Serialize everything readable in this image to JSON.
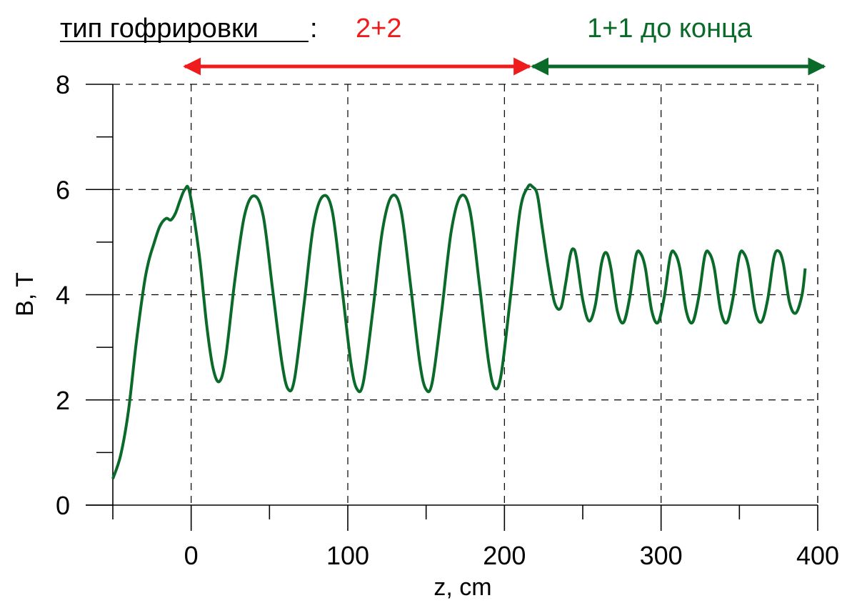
{
  "header": {
    "label": "тип гофрировки",
    "colon": ":",
    "region_a_label": "2+2",
    "region_b_label": "1+1 до конца"
  },
  "colors": {
    "curve": "#0a6a2a",
    "region_a": "#ee1c1c",
    "region_b": "#0a6a2a",
    "axis": "#000000",
    "grid": "#000000"
  },
  "chart_data": {
    "type": "line",
    "title": "",
    "xlabel": "z, cm",
    "ylabel": "B, T",
    "xlim": [
      -50,
      400
    ],
    "ylim": [
      0,
      8
    ],
    "x_ticks": [
      0,
      100,
      200,
      300,
      400
    ],
    "y_ticks": [
      0,
      2,
      4,
      6,
      8
    ],
    "x_minor_ticks": [
      -50,
      50,
      150,
      250,
      350
    ],
    "y_minor_ticks": [
      1,
      3,
      5,
      7
    ],
    "grid": true,
    "grid_style": "dashed",
    "regions": [
      {
        "label": "2+2",
        "x_start": -5,
        "x_end": 217,
        "color": "#ee1c1c"
      },
      {
        "label": "1+1 до конца",
        "x_start": 217,
        "x_end": 405,
        "color": "#0a6a2a"
      }
    ],
    "series": [
      {
        "color": "#0a6a2a",
        "x": [
          -50,
          -45,
          -40,
          -35,
          -30,
          -27,
          -24,
          -20,
          -16,
          -13,
          -10,
          -7,
          -4,
          -1,
          5,
          10,
          14,
          18,
          22,
          28,
          34,
          40,
          46,
          52,
          58,
          62,
          66,
          72,
          78,
          84,
          90,
          96,
          102,
          106,
          110,
          116,
          122,
          128,
          134,
          140,
          146,
          150,
          154,
          160,
          166,
          172,
          178,
          184,
          190,
          194,
          198,
          204,
          210,
          215,
          218,
          221,
          224,
          228,
          232,
          236,
          239,
          242,
          244,
          246,
          250,
          254,
          258,
          262,
          265,
          268,
          272,
          276,
          280,
          284,
          287,
          290,
          294,
          298,
          302,
          306,
          309,
          312,
          316,
          320,
          324,
          328,
          331,
          334,
          338,
          342,
          346,
          350,
          353,
          356,
          360,
          364,
          368,
          372,
          375,
          378,
          382,
          386,
          390,
          392
        ],
        "y": [
          0.5,
          0.95,
          1.8,
          3.1,
          4.2,
          4.65,
          4.95,
          5.3,
          5.45,
          5.42,
          5.55,
          5.8,
          6.0,
          5.95,
          4.8,
          3.4,
          2.6,
          2.35,
          2.8,
          4.3,
          5.5,
          5.88,
          5.5,
          4.1,
          2.7,
          2.2,
          2.4,
          3.8,
          5.3,
          5.87,
          5.6,
          4.2,
          2.7,
          2.2,
          2.35,
          3.7,
          5.2,
          5.87,
          5.6,
          4.2,
          2.7,
          2.2,
          2.35,
          3.7,
          5.2,
          5.87,
          5.6,
          4.2,
          2.7,
          2.22,
          2.5,
          4.0,
          5.6,
          6.05,
          6.05,
          5.9,
          5.3,
          4.5,
          3.85,
          3.75,
          4.2,
          4.75,
          4.87,
          4.7,
          3.9,
          3.5,
          3.8,
          4.6,
          4.8,
          4.5,
          3.7,
          3.47,
          3.95,
          4.75,
          4.78,
          4.5,
          3.7,
          3.47,
          3.95,
          4.75,
          4.78,
          4.5,
          3.7,
          3.47,
          3.95,
          4.75,
          4.78,
          4.5,
          3.7,
          3.47,
          3.95,
          4.75,
          4.78,
          4.5,
          3.7,
          3.48,
          3.9,
          4.7,
          4.83,
          4.6,
          3.85,
          3.65,
          4.0,
          4.5
        ]
      }
    ]
  }
}
